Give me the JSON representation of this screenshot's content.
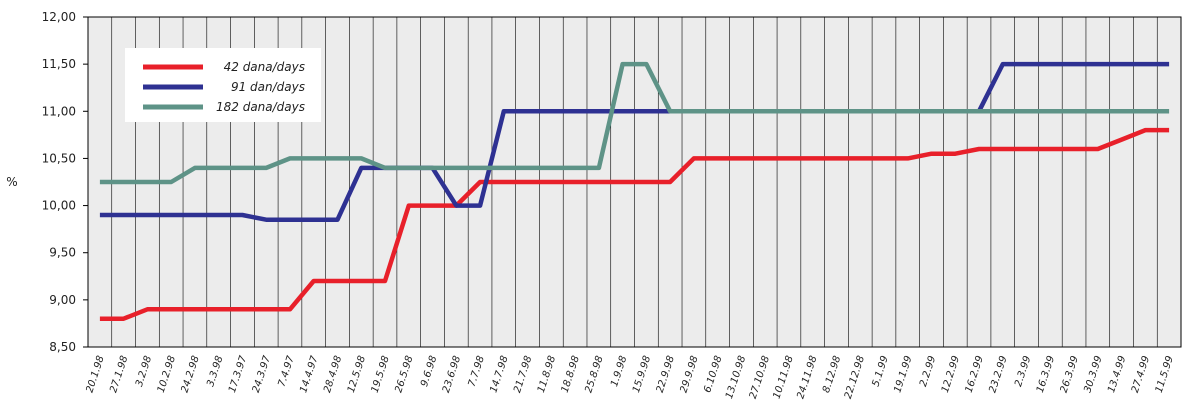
{
  "chart_data": {
    "type": "line",
    "ylabel": "%",
    "ylim": [
      8.5,
      12.0
    ],
    "yticks": [
      "12,00",
      "11,50",
      "11,00",
      "10,50",
      "10,00",
      "9,50",
      "9,00",
      "8,50"
    ],
    "ytick_values": [
      12.0,
      11.5,
      11.0,
      10.5,
      10.0,
      9.5,
      9.0,
      8.5
    ],
    "grid": "vertical",
    "legend_position": "top-left",
    "categories": [
      "20.1.98",
      "27.1.98",
      "3.2.98",
      "10.2.98",
      "24.2.98",
      "3.3.98",
      "17.3.97",
      "24.3.97",
      "7.4.97",
      "14.4.97",
      "28.4.98",
      "12.5.98",
      "19.5.98",
      "26.5.98",
      "9.6.98",
      "23.6.98",
      "7.7.98",
      "14.7.98",
      "21.7.98",
      "11.8.98",
      "18.8.98",
      "25.8.98",
      "1.9.98",
      "15.9.98",
      "22.9.98",
      "29.9.98",
      "6.10.98",
      "13.10.98",
      "27.10.98",
      "10.11.98",
      "24.11.98",
      "8.12.98",
      "22.12.98",
      "5.1.99",
      "19.1.99",
      "2.2.99",
      "12.2.99",
      "16.2.99",
      "23.2.99",
      "2.3.99",
      "16.3.99",
      "26.3.99",
      "30.3.99",
      "13.4.99",
      "27.4.99",
      "11.5.99"
    ],
    "series": [
      {
        "name": "42 dana/days",
        "color": "#e8202a",
        "values": [
          8.8,
          8.8,
          8.9,
          8.9,
          8.9,
          8.9,
          8.9,
          8.9,
          8.9,
          9.2,
          9.2,
          9.2,
          9.2,
          10.0,
          10.0,
          10.0,
          10.25,
          10.25,
          10.25,
          10.25,
          10.25,
          10.25,
          10.25,
          10.25,
          10.25,
          10.5,
          10.5,
          10.5,
          10.5,
          10.5,
          10.5,
          10.5,
          10.5,
          10.5,
          10.5,
          10.55,
          10.55,
          10.6,
          10.6,
          10.6,
          10.6,
          10.6,
          10.6,
          10.7,
          10.8,
          10.8
        ]
      },
      {
        "name": "91 dan/days",
        "color": "#2e3192",
        "values": [
          9.9,
          9.9,
          9.9,
          9.9,
          9.9,
          9.9,
          9.9,
          9.85,
          9.85,
          9.85,
          9.85,
          10.4,
          10.4,
          10.4,
          10.4,
          10.0,
          10.0,
          11.0,
          11.0,
          11.0,
          11.0,
          11.0,
          11.0,
          11.0,
          11.0,
          11.0,
          11.0,
          11.0,
          11.0,
          11.0,
          11.0,
          11.0,
          11.0,
          11.0,
          11.0,
          11.0,
          11.0,
          11.0,
          11.5,
          11.5,
          11.5,
          11.5,
          11.5,
          11.5,
          11.5,
          11.5
        ]
      },
      {
        "name": "182 dana/days",
        "color": "#5e9387",
        "values": [
          10.25,
          10.25,
          10.25,
          10.25,
          10.4,
          10.4,
          10.4,
          10.4,
          10.5,
          10.5,
          10.5,
          10.5,
          10.4,
          10.4,
          10.4,
          10.4,
          10.4,
          10.4,
          10.4,
          10.4,
          10.4,
          10.4,
          11.5,
          11.5,
          11.0,
          11.0,
          11.0,
          11.0,
          11.0,
          11.0,
          11.0,
          11.0,
          11.0,
          11.0,
          11.0,
          11.0,
          11.0,
          11.0,
          11.0,
          11.0,
          11.0,
          11.0,
          11.0,
          11.0,
          11.0,
          11.0
        ]
      }
    ]
  }
}
